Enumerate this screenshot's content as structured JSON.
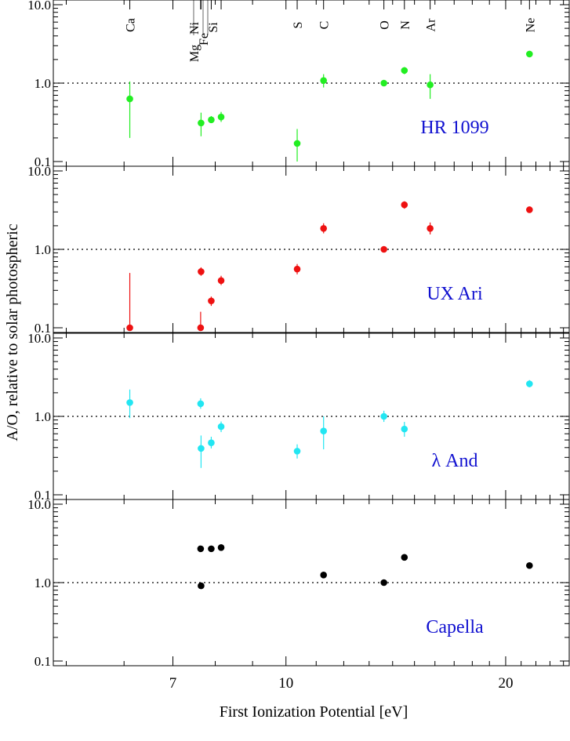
{
  "chart_data": {
    "type": "scatter",
    "xlabel": "First Ionization Potential [eV]",
    "ylabel": "A/O, relative to solar photospheric",
    "x_scale": "log",
    "y_scale": "log",
    "xlim": [
      4.8,
      24.5
    ],
    "ylim": [
      0.1,
      10.0
    ],
    "x_ticks": [
      {
        "v": 7,
        "label": "7"
      },
      {
        "v": 10,
        "label": "10"
      },
      {
        "v": 20,
        "label": "20"
      }
    ],
    "y_ticks": [
      {
        "v": 0.1,
        "label": "0.1"
      },
      {
        "v": 1.0,
        "label": "1.0"
      },
      {
        "v": 10.0,
        "label": "10.0"
      }
    ],
    "reference_line": 1.0,
    "elements": [
      {
        "name": "Ca",
        "fip": 6.11,
        "label_dx": 0
      },
      {
        "name": "Mg",
        "fip": 7.65,
        "label_dx": -2
      },
      {
        "name": "Ni",
        "fip": 7.64,
        "label_dx": 0
      },
      {
        "name": "Fe",
        "fip": 7.9,
        "label_dx": 0
      },
      {
        "name": "Si",
        "fip": 8.15,
        "label_dx": 0
      },
      {
        "name": "S",
        "fip": 10.36,
        "label_dx": 0
      },
      {
        "name": "C",
        "fip": 11.26,
        "label_dx": 0
      },
      {
        "name": "O",
        "fip": 13.62,
        "label_dx": 0
      },
      {
        "name": "N",
        "fip": 14.53,
        "label_dx": 0
      },
      {
        "name": "Ar",
        "fip": 15.76,
        "label_dx": 0
      },
      {
        "name": "Ne",
        "fip": 21.56,
        "label_dx": 0
      }
    ],
    "panels": [
      {
        "name": "HR 1099",
        "color": "#22ee22",
        "points": [
          {
            "el": "Ca",
            "x": 6.11,
            "y": 0.63,
            "lo": 0.2,
            "hi": 1.05
          },
          {
            "el": "Mg",
            "x": 7.65,
            "y": 0.31,
            "lo": 0.21,
            "hi": 0.42
          },
          {
            "el": "Fe",
            "x": 7.9,
            "y": 0.34,
            "lo": 0.31,
            "hi": 0.38
          },
          {
            "el": "Si",
            "x": 8.15,
            "y": 0.37,
            "lo": 0.32,
            "hi": 0.43
          },
          {
            "el": "S",
            "x": 10.36,
            "y": 0.17,
            "lo": 0.1,
            "hi": 0.26
          },
          {
            "el": "C",
            "x": 11.26,
            "y": 1.08,
            "lo": 0.88,
            "hi": 1.3
          },
          {
            "el": "O",
            "x": 13.62,
            "y": 1.0,
            "lo": 0.92,
            "hi": 1.08
          },
          {
            "el": "N",
            "x": 14.53,
            "y": 1.45,
            "lo": 1.3,
            "hi": 1.6
          },
          {
            "el": "Ar",
            "x": 15.76,
            "y": 0.95,
            "lo": 0.63,
            "hi": 1.3
          },
          {
            "el": "Ne",
            "x": 21.56,
            "y": 2.35,
            "lo": 2.2,
            "hi": 2.5
          }
        ]
      },
      {
        "name": "UX Ari",
        "color": "#ee1111",
        "points": [
          {
            "el": "Ca",
            "x": 6.11,
            "y": 0.1,
            "lo": 0.1,
            "hi": 0.5
          },
          {
            "el": "Ni",
            "x": 7.64,
            "y": 0.1,
            "lo": 0.1,
            "hi": 0.16
          },
          {
            "el": "Mg",
            "x": 7.65,
            "y": 0.52,
            "lo": 0.46,
            "hi": 0.59
          },
          {
            "el": "Fe",
            "x": 7.9,
            "y": 0.22,
            "lo": 0.19,
            "hi": 0.25
          },
          {
            "el": "Si",
            "x": 8.15,
            "y": 0.4,
            "lo": 0.35,
            "hi": 0.46
          },
          {
            "el": "S",
            "x": 10.36,
            "y": 0.56,
            "lo": 0.48,
            "hi": 0.65
          },
          {
            "el": "C",
            "x": 11.26,
            "y": 1.85,
            "lo": 1.6,
            "hi": 2.15
          },
          {
            "el": "O",
            "x": 13.62,
            "y": 1.0,
            "lo": 0.92,
            "hi": 1.08
          },
          {
            "el": "N",
            "x": 14.53,
            "y": 3.7,
            "lo": 3.3,
            "hi": 4.1
          },
          {
            "el": "Ar",
            "x": 15.76,
            "y": 1.85,
            "lo": 1.55,
            "hi": 2.2
          },
          {
            "el": "Ne",
            "x": 21.56,
            "y": 3.2,
            "lo": 2.95,
            "hi": 3.5
          }
        ]
      },
      {
        "name": "λ And",
        "color": "#22e6f2",
        "points": [
          {
            "el": "Ca",
            "x": 6.11,
            "y": 1.5,
            "lo": 0.95,
            "hi": 2.2
          },
          {
            "el": "Ni",
            "x": 7.64,
            "y": 1.45,
            "lo": 1.25,
            "hi": 1.7
          },
          {
            "el": "Mg",
            "x": 7.65,
            "y": 0.39,
            "lo": 0.22,
            "hi": 0.57
          },
          {
            "el": "Fe",
            "x": 7.9,
            "y": 0.46,
            "lo": 0.39,
            "hi": 0.55
          },
          {
            "el": "Si",
            "x": 8.15,
            "y": 0.74,
            "lo": 0.63,
            "hi": 0.86
          },
          {
            "el": "S",
            "x": 10.36,
            "y": 0.36,
            "lo": 0.29,
            "hi": 0.44
          },
          {
            "el": "C",
            "x": 11.26,
            "y": 0.65,
            "lo": 0.38,
            "hi": 1.0
          },
          {
            "el": "O",
            "x": 13.62,
            "y": 1.0,
            "lo": 0.85,
            "hi": 1.18
          },
          {
            "el": "N",
            "x": 14.53,
            "y": 0.69,
            "lo": 0.55,
            "hi": 0.85
          },
          {
            "el": "Ne",
            "x": 21.56,
            "y": 2.6,
            "lo": 2.35,
            "hi": 2.9
          }
        ]
      },
      {
        "name": "Capella",
        "color": "#000000",
        "points": [
          {
            "el": "Ni",
            "x": 7.64,
            "y": 2.7,
            "lo": 2.6,
            "hi": 2.8
          },
          {
            "el": "Mg",
            "x": 7.65,
            "y": 0.91,
            "lo": 0.84,
            "hi": 0.98
          },
          {
            "el": "Fe",
            "x": 7.9,
            "y": 2.7,
            "lo": 2.6,
            "hi": 2.8
          },
          {
            "el": "Si",
            "x": 8.15,
            "y": 2.8,
            "lo": 2.7,
            "hi": 2.9
          },
          {
            "el": "C",
            "x": 11.26,
            "y": 1.25,
            "lo": 1.2,
            "hi": 1.3
          },
          {
            "el": "O",
            "x": 13.62,
            "y": 1.0,
            "lo": 0.96,
            "hi": 1.04
          },
          {
            "el": "N",
            "x": 14.53,
            "y": 2.1,
            "lo": 2.0,
            "hi": 2.2
          },
          {
            "el": "Ne",
            "x": 21.56,
            "y": 1.65,
            "lo": 1.58,
            "hi": 1.72
          }
        ]
      }
    ]
  }
}
